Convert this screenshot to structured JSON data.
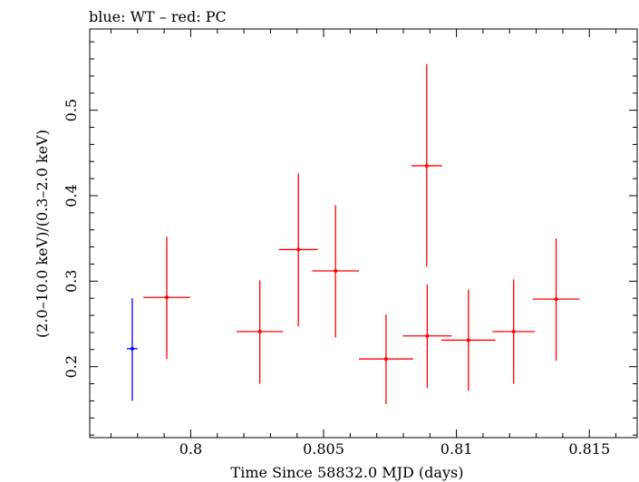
{
  "chart_data": {
    "type": "scatter",
    "title": "blue: WT – red: PC",
    "xlabel": "Time Since 58832.0 MJD (days)",
    "ylabel": "(2.0–10.0 keV)/(0.3–2.0 keV)",
    "xlim": [
      0.7962,
      0.8168
    ],
    "ylim": [
      0.117,
      0.595
    ],
    "x_ticks": [
      0.8,
      0.805,
      0.81,
      0.815
    ],
    "x_tick_labels": [
      "0.8",
      "0.805",
      "0.81",
      "0.815"
    ],
    "y_ticks": [
      0.2,
      0.3,
      0.4,
      0.5
    ],
    "y_tick_labels": [
      "0.2",
      "0.3",
      "0.4",
      "0.5"
    ],
    "grid": false,
    "series": [
      {
        "name": "WT",
        "color": "#0000ff",
        "points": [
          {
            "x": 0.7978,
            "xerr": 0.0002,
            "y": 0.221,
            "yerr_low": 0.061,
            "yerr_high": 0.059
          }
        ]
      },
      {
        "name": "PC",
        "color": "#ff0000",
        "points": [
          {
            "x": 0.7991,
            "xerr": 0.00088,
            "y": 0.281,
            "yerr_low": 0.072,
            "yerr_high": 0.071
          },
          {
            "x": 0.8089,
            "xerr": 0.00092,
            "y": 0.236,
            "yerr_low": 0.061,
            "yerr_high": 0.06
          },
          {
            "x": 0.8026,
            "xerr": 0.00088,
            "y": 0.241,
            "yerr_low": 0.061,
            "yerr_high": 0.06
          },
          {
            "x": 0.80405,
            "xerr": 0.00073,
            "y": 0.337,
            "yerr_low": 0.09,
            "yerr_high": 0.089
          },
          {
            "x": 0.80545,
            "xerr": 0.00088,
            "y": 0.312,
            "yerr_low": 0.078,
            "yerr_high": 0.077
          },
          {
            "x": 0.80735,
            "xerr": 0.00102,
            "y": 0.209,
            "yerr_low": 0.053,
            "yerr_high": 0.052
          },
          {
            "x": 0.80888,
            "xerr": 0.00058,
            "y": 0.435,
            "yerr_low": 0.118,
            "yerr_high": 0.119
          },
          {
            "x": 0.81045,
            "xerr": 0.00102,
            "y": 0.231,
            "yerr_low": 0.059,
            "yerr_high": 0.059
          },
          {
            "x": 0.81215,
            "xerr": 0.0008,
            "y": 0.241,
            "yerr_low": 0.061,
            "yerr_high": 0.061
          },
          {
            "x": 0.81375,
            "xerr": 0.00088,
            "y": 0.279,
            "yerr_low": 0.072,
            "yerr_high": 0.071
          }
        ]
      }
    ]
  }
}
